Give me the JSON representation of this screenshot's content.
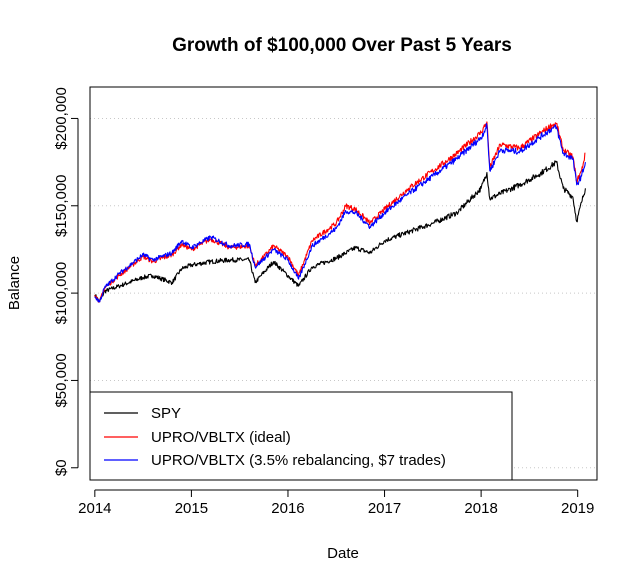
{
  "chart_data": {
    "type": "line",
    "title": "Growth of $100,000 Over Past 5 Years",
    "xlabel": "Date",
    "ylabel": "Balance",
    "xlim": [
      2013.95,
      2019.2
    ],
    "ylim": [
      -7000,
      218000
    ],
    "x_ticks": [
      2014,
      2015,
      2016,
      2017,
      2018,
      2019
    ],
    "x_tick_labels": [
      "2014",
      "2015",
      "2016",
      "2017",
      "2018",
      "2019"
    ],
    "y_ticks": [
      0,
      50000,
      100000,
      150000,
      200000
    ],
    "y_tick_labels": [
      "$0",
      "$50,000",
      "$100,000",
      "$150,000",
      "$200,000"
    ],
    "grid": "horizontal dotted",
    "legend_position": "bottom-left",
    "series": [
      {
        "name": "SPY",
        "color": "#000000",
        "x": [
          2014.0,
          2014.05,
          2014.1,
          2014.25,
          2014.5,
          2014.6,
          2014.8,
          2014.9,
          2015.0,
          2015.2,
          2015.4,
          2015.6,
          2015.66,
          2015.72,
          2015.85,
          2016.0,
          2016.11,
          2016.25,
          2016.5,
          2016.7,
          2016.85,
          2017.0,
          2017.25,
          2017.5,
          2017.75,
          2018.0,
          2018.06,
          2018.09,
          2018.2,
          2018.4,
          2018.6,
          2018.73,
          2018.78,
          2018.85,
          2018.95,
          2018.99,
          2019.04,
          2019.08
        ],
        "values": [
          99000,
          95000,
          101000,
          104000,
          109000,
          110000,
          106000,
          114000,
          116000,
          118000,
          119000,
          119000,
          106000,
          110000,
          118000,
          110000,
          104000,
          115000,
          120000,
          126000,
          123000,
          130000,
          135000,
          140000,
          146000,
          160000,
          169000,
          154000,
          157000,
          162000,
          168000,
          173000,
          175000,
          160000,
          155000,
          141000,
          152000,
          160000
        ]
      },
      {
        "name": "UPRO/VBLTX (ideal)",
        "color": "#ff0000",
        "x": [
          2014.0,
          2014.05,
          2014.1,
          2014.25,
          2014.5,
          2014.6,
          2014.8,
          2014.9,
          2015.0,
          2015.2,
          2015.4,
          2015.6,
          2015.66,
          2015.72,
          2015.85,
          2016.0,
          2016.11,
          2016.25,
          2016.5,
          2016.6,
          2016.7,
          2016.85,
          2017.0,
          2017.25,
          2017.5,
          2017.75,
          2018.0,
          2018.06,
          2018.09,
          2018.2,
          2018.4,
          2018.6,
          2018.73,
          2018.78,
          2018.85,
          2018.95,
          2018.99,
          2019.04,
          2019.08
        ],
        "values": [
          99000,
          95000,
          103000,
          110000,
          121000,
          118000,
          122000,
          128000,
          125000,
          131000,
          126000,
          127000,
          116000,
          119000,
          127000,
          121000,
          110000,
          130000,
          140000,
          150000,
          148000,
          140000,
          148000,
          160000,
          170000,
          180000,
          192000,
          198000,
          172000,
          185000,
          183000,
          191000,
          196000,
          197000,
          182000,
          178000,
          164000,
          170000,
          180000
        ]
      },
      {
        "name": "UPRO/VBLTX (3.5% rebalancing, $7 trades)",
        "color": "#0000ff",
        "x": [
          2014.0,
          2014.05,
          2014.1,
          2014.25,
          2014.5,
          2014.6,
          2014.8,
          2014.9,
          2015.0,
          2015.2,
          2015.4,
          2015.6,
          2015.66,
          2015.72,
          2015.85,
          2016.0,
          2016.11,
          2016.25,
          2016.5,
          2016.6,
          2016.7,
          2016.85,
          2017.0,
          2017.25,
          2017.5,
          2017.75,
          2018.0,
          2018.06,
          2018.09,
          2018.2,
          2018.4,
          2018.6,
          2018.73,
          2018.78,
          2018.85,
          2018.95,
          2018.99,
          2019.04,
          2019.08
        ],
        "values": [
          98000,
          95000,
          103000,
          111000,
          122000,
          119000,
          123000,
          130000,
          126000,
          132000,
          127000,
          128000,
          115000,
          118000,
          125000,
          119000,
          108000,
          127000,
          137000,
          147000,
          146000,
          138000,
          146000,
          157000,
          167000,
          177000,
          189000,
          196000,
          170000,
          182000,
          181000,
          189000,
          194000,
          195000,
          180000,
          177000,
          162000,
          167000,
          175000
        ]
      }
    ]
  }
}
